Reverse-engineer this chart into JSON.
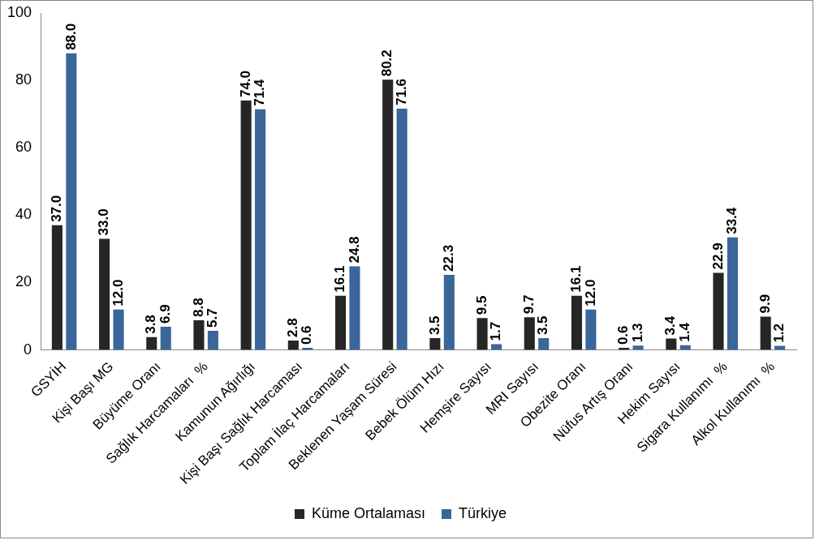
{
  "chart_data": {
    "type": "bar",
    "categories": [
      "GSYİH",
      "Kişi Başı MG",
      "Büyüme Oranı",
      "Sağlık Harcamaları  %",
      "Kamunun Ağırlığı",
      "Kişi Başı Sağlık Harcaması",
      "Toplam İlaç Harcamaları",
      "Beklenen Yaşam Süresi",
      "Bebek Ölüm Hızı",
      "Hemşire Sayısı",
      "MRI Sayısı",
      "Obezite Oranı",
      "Nüfus Artış Oranı",
      "Hekim Sayısı",
      "Sigara Kullanımı  %",
      "Alkol Kullanımı  %"
    ],
    "series": [
      {
        "name": "Küme Ortalaması",
        "color": "#262626",
        "values": [
          37,
          33,
          3.8,
          8.8,
          74,
          2.8,
          16.1,
          80.2,
          3.5,
          9.5,
          9.7,
          16.1,
          0.6,
          3.4,
          22.9,
          9.9
        ],
        "value_labels": [
          "37.0",
          "33.0",
          "3.8",
          "8.8",
          "74.0",
          "2.8",
          "16.1",
          "80.2",
          "3.5",
          "9.5",
          "9.7",
          "16.1",
          "0.6",
          "3.4",
          "22.9",
          "9.9"
        ]
      },
      {
        "name": "Türkiye",
        "color": "#3a6699",
        "values": [
          88,
          12,
          6.9,
          5.7,
          71.4,
          0.6,
          24.8,
          71.6,
          22.3,
          1.7,
          3.5,
          12,
          1.3,
          1.4,
          33.4,
          1.2
        ],
        "value_labels": [
          "88.0",
          "12.0",
          "6.9",
          "5.7",
          "71.4",
          "0.6",
          "24.8",
          "71.6",
          "22.3",
          "1.7",
          "3.5",
          "12.0",
          "1.3",
          "1.4",
          "33.4",
          "1.2"
        ]
      }
    ],
    "ylim": [
      0,
      100
    ],
    "yticks": [
      0,
      20,
      40,
      60,
      80,
      100
    ],
    "legend": "bottom"
  }
}
